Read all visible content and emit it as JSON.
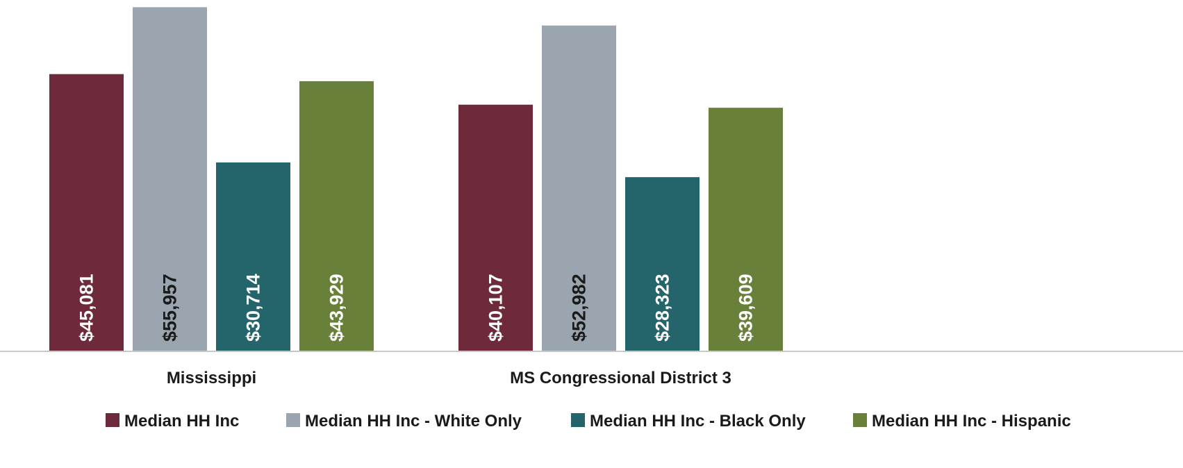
{
  "chart_data": {
    "type": "bar",
    "categories": [
      "Mississippi",
      "MS Congressional District 3"
    ],
    "series": [
      {
        "name": "Median HH Inc",
        "values": [
          45081,
          40107
        ],
        "labels": [
          "$45,081",
          "$40,107"
        ],
        "color": "#6e2a3b",
        "label_color": "#ffffff"
      },
      {
        "name": "Median HH Inc - White Only",
        "values": [
          55957,
          52982
        ],
        "labels": [
          "$55,957",
          "$52,982"
        ],
        "color": "#9aa5b0",
        "label_color": "#1a1a1a"
      },
      {
        "name": "Median HH Inc - Black Only",
        "values": [
          30714,
          28323
        ],
        "labels": [
          "$30,714",
          "$28,323"
        ],
        "color": "#24646b",
        "label_color": "#ffffff"
      },
      {
        "name": "Median HH Inc - Hispanic",
        "values": [
          43929,
          39609
        ],
        "labels": [
          "$43,929",
          "$39,609"
        ],
        "color": "#69803a",
        "label_color": "#ffffff"
      }
    ],
    "ylim": [
      0,
      56000
    ],
    "grid": false,
    "legend": "bottom",
    "axis_color": "#c8c8c8"
  }
}
